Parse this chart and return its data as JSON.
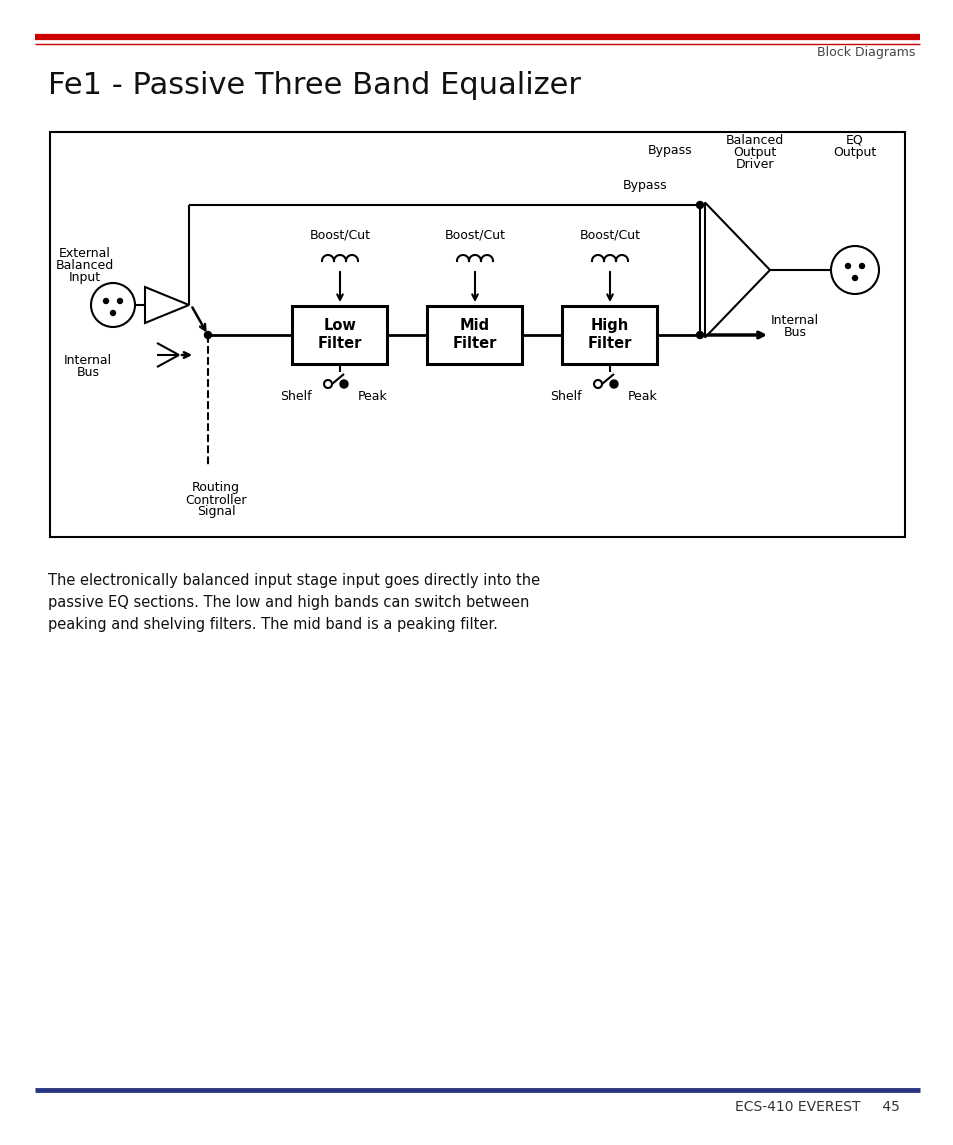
{
  "title": "Fe1 - Passive Three Band Equalizer",
  "header_right": "Block Diagrams",
  "footer_right": "ECS-410 EVEREST     45",
  "header_line_color_thick": "#cc0000",
  "header_line_color_thin": "#cc0000",
  "footer_line_color": "#2a3580",
  "description_lines": [
    "The electronically balanced input stage input goes directly into the",
    "passive EQ sections. The low and high bands can switch between",
    "peaking and shelving filters. The mid band is a peaking filter."
  ],
  "bg_color": "#ffffff"
}
